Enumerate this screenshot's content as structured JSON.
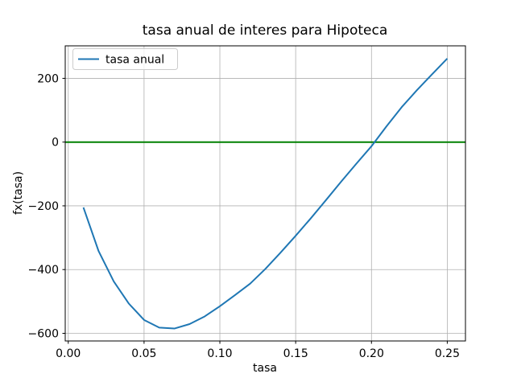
{
  "figure": {
    "background": "#ffffff"
  },
  "chart_data": {
    "type": "line",
    "title": "tasa anual de interes para Hipoteca",
    "xlabel": "tasa",
    "ylabel": "fx(tasa)",
    "grid": true,
    "legend_position": "upper left",
    "xlim": [
      -0.002,
      0.262
    ],
    "ylim": [
      -624,
      302
    ],
    "xticks": [
      0.0,
      0.05,
      0.1,
      0.15,
      0.2,
      0.25
    ],
    "xtick_labels": [
      "0.00",
      "0.05",
      "0.10",
      "0.15",
      "0.20",
      "0.25"
    ],
    "yticks": [
      200,
      0,
      -200,
      -400,
      -600
    ],
    "ytick_labels": [
      "200",
      "0",
      "−200",
      "−400",
      "−600"
    ],
    "hline": {
      "y": 0,
      "color": "#008000"
    },
    "series": [
      {
        "name": "tasa anual",
        "color": "#1f77b4",
        "x": [
          0.01,
          0.02,
          0.03,
          0.04,
          0.05,
          0.06,
          0.07,
          0.08,
          0.09,
          0.1,
          0.11,
          0.12,
          0.13,
          0.14,
          0.15,
          0.16,
          0.17,
          0.18,
          0.19,
          0.2,
          0.21,
          0.22,
          0.23,
          0.24,
          0.25
        ],
        "y": [
          -205,
          -342,
          -437,
          -507,
          -558,
          -582,
          -585,
          -571,
          -547,
          -515,
          -480,
          -444,
          -398,
          -347,
          -294,
          -239,
          -182,
          -124,
          -68,
          -13,
          50,
          110,
          163,
          213,
          262
        ]
      }
    ],
    "grid_color": "#b0b0b0",
    "spine_color": "#000000"
  }
}
